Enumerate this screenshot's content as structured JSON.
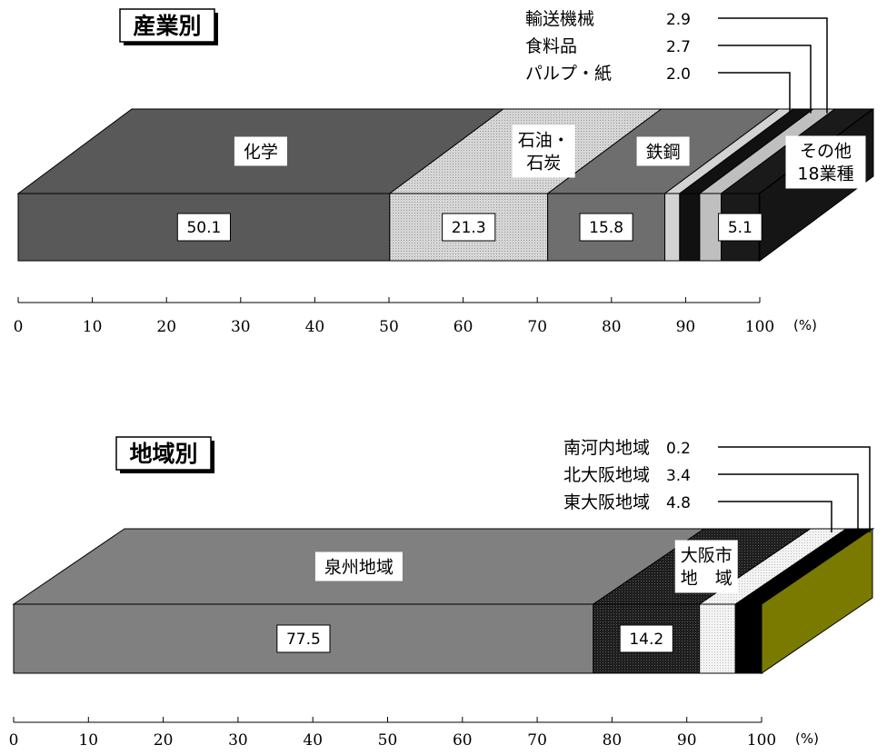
{
  "chart_data": [
    {
      "type": "bar",
      "orientation": "horizontal-stacked-100",
      "title": "産業別",
      "unit": "(%)",
      "xlim": [
        0,
        100
      ],
      "x_ticks": [
        "0",
        "10",
        "20",
        "30",
        "40",
        "50",
        "60",
        "70",
        "80",
        "90",
        "100"
      ],
      "segments": [
        {
          "name": "化学",
          "value": 50.1,
          "label": "50.1",
          "color": "#595959"
        },
        {
          "name": "石油・石炭",
          "name_lines": [
            "石油・",
            "石炭"
          ],
          "value": 21.3,
          "label": "21.3",
          "color": "#c8c8c8"
        },
        {
          "name": "鉄鋼",
          "value": 15.8,
          "label": "15.8",
          "color": "#6e6e6e"
        },
        {
          "name": "パルプ・紙",
          "value": 2.0,
          "label": "2.0",
          "color": "#d3d3d3"
        },
        {
          "name": "食料品",
          "value": 2.7,
          "label": "2.7",
          "color": "#111111"
        },
        {
          "name": "輸送機械",
          "value": 2.9,
          "label": "2.9",
          "color": "#bfbfbf"
        },
        {
          "name": "その他18業種",
          "name_lines": [
            "その他",
            "18業種"
          ],
          "value": 5.1,
          "label": "5.1",
          "color": "#1a1a1a"
        }
      ]
    },
    {
      "type": "bar",
      "orientation": "horizontal-stacked-100",
      "title": "地域別",
      "unit": "(%)",
      "xlim": [
        0,
        100
      ],
      "x_ticks": [
        "0",
        "10",
        "20",
        "30",
        "40",
        "50",
        "60",
        "70",
        "80",
        "90",
        "100"
      ],
      "segments": [
        {
          "name": "泉州地域",
          "value": 77.5,
          "label": "77.5",
          "color": "#808080"
        },
        {
          "name": "大阪市地域",
          "name_lines": [
            "大阪市",
            "地　域"
          ],
          "value": 14.2,
          "label": "14.2",
          "color": "#111111"
        },
        {
          "name": "東大阪地域",
          "value": 4.8,
          "label": "4.8",
          "color": "#ebebeb"
        },
        {
          "name": "北大阪地域",
          "value": 3.4,
          "label": "3.4",
          "color": "#000000"
        },
        {
          "name": "南河内地域",
          "value": 0.2,
          "label": "0.2",
          "color": "#7a7a00"
        }
      ]
    }
  ]
}
